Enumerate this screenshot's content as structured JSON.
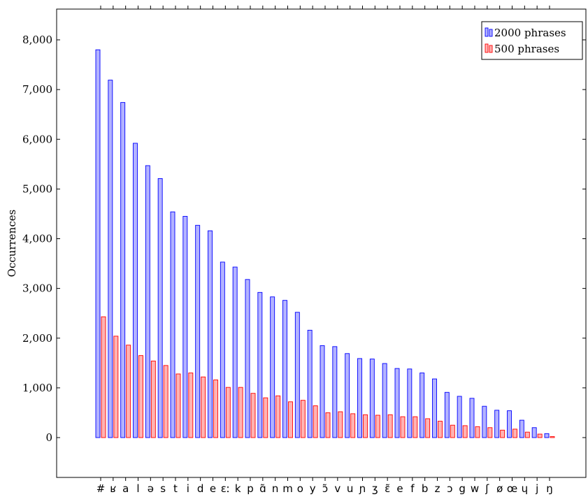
{
  "chart_data": {
    "type": "bar",
    "title": "",
    "xlabel": "",
    "ylabel": "Occurrences",
    "ylim": [
      -900,
      8500
    ],
    "yticks": [
      0,
      1000,
      2000,
      3000,
      4000,
      5000,
      6000,
      7000,
      8000
    ],
    "ytick_labels": [
      "0",
      "1,000",
      "2,000",
      "3,000",
      "4,000",
      "5,000",
      "6,000",
      "7,000",
      "8,000"
    ],
    "grid": false,
    "legend_position": "top-right",
    "categories": [
      "#",
      "ʁ",
      "a",
      "l",
      "ə",
      "s",
      "t",
      "i",
      "d",
      "e",
      "ɛː",
      "k",
      "p",
      "ɑ̃",
      "n",
      "m",
      "o",
      "y",
      "ɔ̃",
      "v",
      "u",
      "ɲ",
      "ʒ",
      "ɛ̃",
      "e",
      "f",
      "b",
      "z",
      "ɔ",
      "g",
      "w",
      "ʃ",
      "ø",
      "œ",
      "ɥ",
      "j",
      "ŋ"
    ],
    "series": [
      {
        "name": "2000 phrases",
        "color": "#0000ff",
        "fill": "#b3b3ff",
        "values": [
          7800,
          7190,
          6740,
          5920,
          5470,
          5210,
          4540,
          4450,
          4270,
          4160,
          3530,
          3430,
          3180,
          2920,
          2830,
          2760,
          2520,
          2160,
          1850,
          1830,
          1690,
          1590,
          1580,
          1490,
          1390,
          1380,
          1300,
          1180,
          910,
          830,
          790,
          630,
          550,
          540,
          350,
          200,
          80
        ]
      },
      {
        "name": "500 phrases",
        "color": "#ff0000",
        "fill": "#ffb3b3",
        "values": [
          2430,
          2040,
          1860,
          1650,
          1540,
          1450,
          1280,
          1300,
          1220,
          1160,
          1010,
          1010,
          890,
          800,
          840,
          720,
          750,
          640,
          500,
          520,
          480,
          460,
          450,
          460,
          420,
          420,
          380,
          330,
          250,
          240,
          220,
          200,
          150,
          170,
          110,
          70,
          20
        ]
      }
    ]
  }
}
